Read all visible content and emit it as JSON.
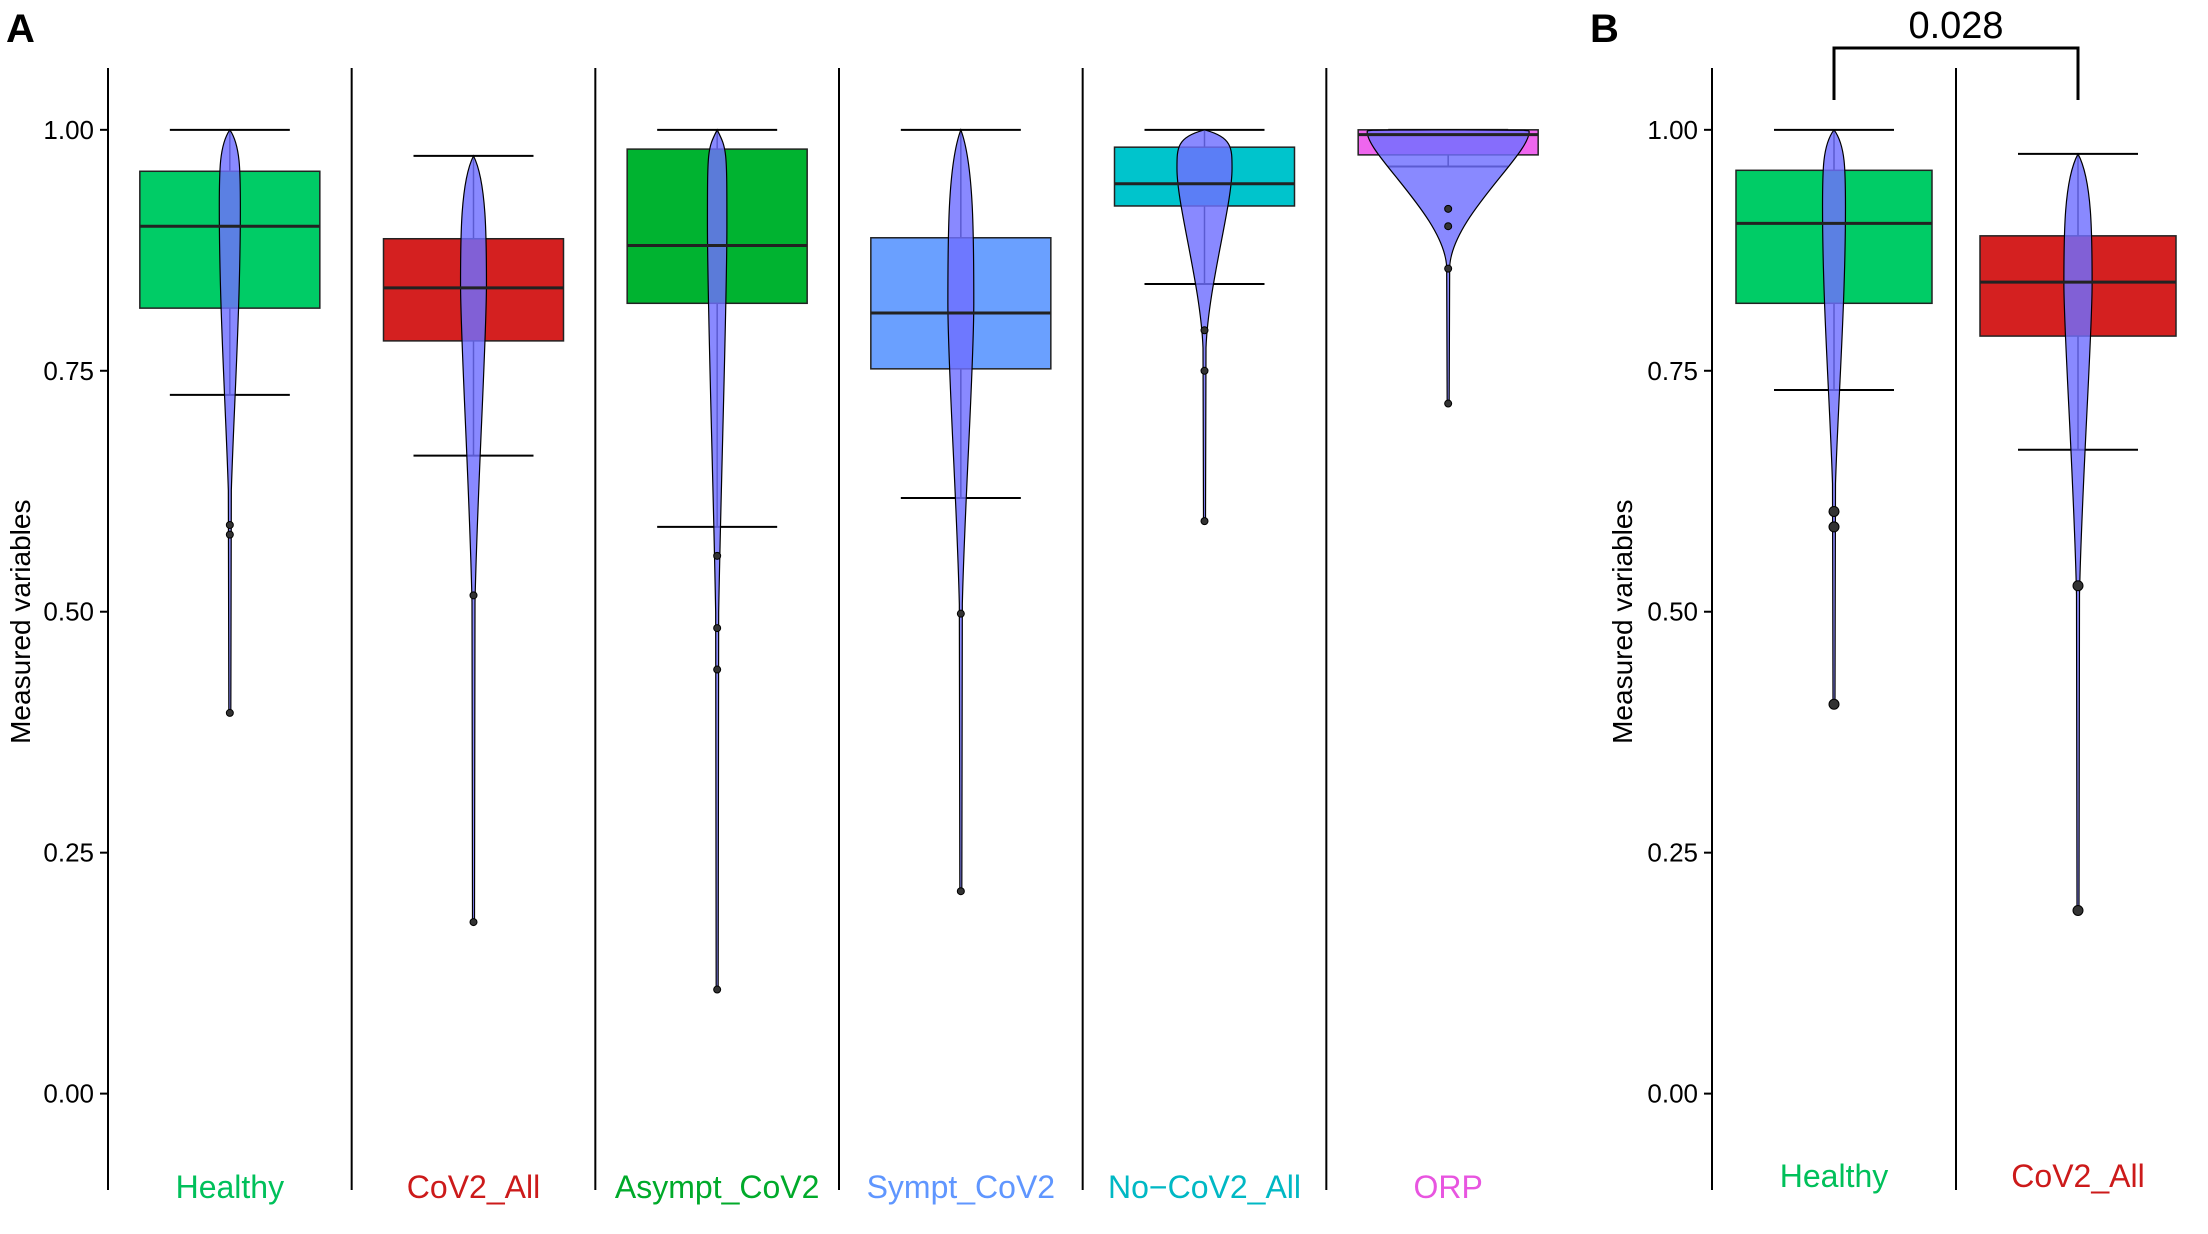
{
  "chart_data": [
    {
      "panel": "A",
      "type": "box+violin",
      "ylabel": "Measured variables",
      "ylim": [
        -0.1,
        1.06
      ],
      "yticks": [
        0.0,
        0.25,
        0.5,
        0.75,
        1.0
      ],
      "ytick_labels": [
        "0.00",
        "0.25",
        "0.50",
        "0.75",
        "1.00"
      ],
      "violin_color": "#6f6fff",
      "groups": [
        {
          "name": "Healthy",
          "color": "#00cc66",
          "label_color": "#00c05a",
          "whisker_low": 0.725,
          "q1": 0.815,
          "median": 0.9,
          "q3": 0.957,
          "whisker_high": 1.0,
          "outliers": [
            0.59,
            0.58,
            0.395
          ],
          "violin_min": 0.395,
          "violin_max": 1.0,
          "violin_peak": 0.92,
          "violin_width": 0.13
        },
        {
          "name": "CoV2_All",
          "color": "#d42020",
          "label_color": "#cc1a1a",
          "whisker_low": 0.662,
          "q1": 0.781,
          "median": 0.836,
          "q3": 0.887,
          "whisker_high": 0.973,
          "outliers": [
            0.517,
            0.178
          ],
          "violin_min": 0.178,
          "violin_max": 0.973,
          "violin_peak": 0.84,
          "violin_width": 0.16
        },
        {
          "name": "Asympt_CoV2",
          "color": "#00b330",
          "label_color": "#00aa2a",
          "whisker_low": 0.588,
          "q1": 0.82,
          "median": 0.88,
          "q3": 0.98,
          "whisker_high": 1.0,
          "outliers": [
            0.558,
            0.483,
            0.44,
            0.108
          ],
          "violin_min": 0.108,
          "violin_max": 1.0,
          "violin_peak": 0.9,
          "violin_width": 0.12
        },
        {
          "name": "Sympt_CoV2",
          "color": "#6aa0ff",
          "label_color": "#5f96ff",
          "whisker_low": 0.618,
          "q1": 0.752,
          "median": 0.81,
          "q3": 0.888,
          "whisker_high": 1.0,
          "outliers": [
            0.498,
            0.21
          ],
          "violin_min": 0.21,
          "violin_max": 1.0,
          "violin_peak": 0.82,
          "violin_width": 0.16
        },
        {
          "name": "No−CoV2_All",
          "color": "#00c4cc",
          "label_color": "#00b8c4",
          "whisker_low": 0.84,
          "q1": 0.921,
          "median": 0.944,
          "q3": 0.982,
          "whisker_high": 1.0,
          "outliers": [
            0.792,
            0.75,
            0.594
          ],
          "violin_min": 0.594,
          "violin_max": 1.0,
          "violin_peak": 0.96,
          "violin_width": 0.34
        },
        {
          "name": "ORP",
          "color": "#ee66ee",
          "label_color": "#e855e0",
          "whisker_low": 0.962,
          "q1": 0.974,
          "median": 0.995,
          "q3": 1.0,
          "whisker_high": 1.0,
          "outliers": [
            0.918,
            0.9,
            0.856,
            0.716
          ],
          "violin_min": 0.716,
          "violin_max": 1.0,
          "violin_peak": 0.998,
          "violin_width": 1.0
        }
      ]
    },
    {
      "panel": "B",
      "type": "box+violin",
      "ylabel": "Measured variables",
      "ylim": [
        -0.1,
        1.06
      ],
      "yticks": [
        0.0,
        0.25,
        0.5,
        0.75,
        1.0
      ],
      "ytick_labels": [
        "0.00",
        "0.25",
        "0.50",
        "0.75",
        "1.00"
      ],
      "violin_color": "#6f6fff",
      "annotation": {
        "text": "0.028",
        "between": [
          "Healthy",
          "CoV2_All"
        ]
      },
      "groups": [
        {
          "name": "Healthy",
          "color": "#00cc66",
          "label_color": "#00c05a",
          "whisker_low": 0.73,
          "q1": 0.82,
          "median": 0.903,
          "q3": 0.958,
          "whisker_high": 1.0,
          "outliers": [
            0.604,
            0.588,
            0.404
          ],
          "violin_min": 0.404,
          "violin_max": 1.0,
          "violin_peak": 0.92,
          "violin_width": 0.13
        },
        {
          "name": "CoV2_All",
          "color": "#d42020",
          "label_color": "#cc1a1a",
          "whisker_low": 0.668,
          "q1": 0.786,
          "median": 0.842,
          "q3": 0.89,
          "whisker_high": 0.975,
          "outliers": [
            0.527,
            0.19
          ],
          "violin_min": 0.19,
          "violin_max": 0.975,
          "violin_peak": 0.84,
          "violin_width": 0.16
        }
      ]
    }
  ]
}
